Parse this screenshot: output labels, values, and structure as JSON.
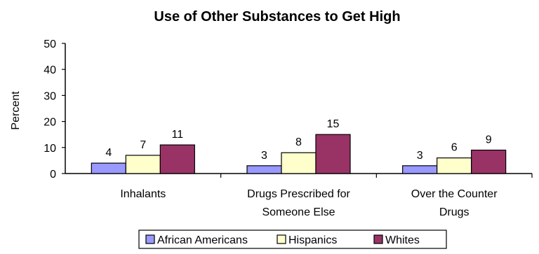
{
  "chart_data": {
    "type": "bar",
    "title": "Use of Other Substances to Get High",
    "ylabel": "Percent",
    "xlabel": "",
    "ylim": [
      0,
      50
    ],
    "yticks": [
      0,
      10,
      20,
      30,
      40,
      50
    ],
    "categories": [
      [
        "Inhalants"
      ],
      [
        "Drugs Prescribed for",
        "Someone Else"
      ],
      [
        "Over the Counter",
        "Drugs"
      ]
    ],
    "series": [
      {
        "name": "African Americans",
        "color": "#9999ff",
        "values": [
          4,
          3,
          3
        ]
      },
      {
        "name": "Hispanics",
        "color": "#ffffcc",
        "values": [
          7,
          8,
          6
        ]
      },
      {
        "name": "Whites",
        "color": "#993366",
        "values": [
          11,
          15,
          9
        ]
      }
    ],
    "grid": false,
    "legend_position": "bottom"
  }
}
